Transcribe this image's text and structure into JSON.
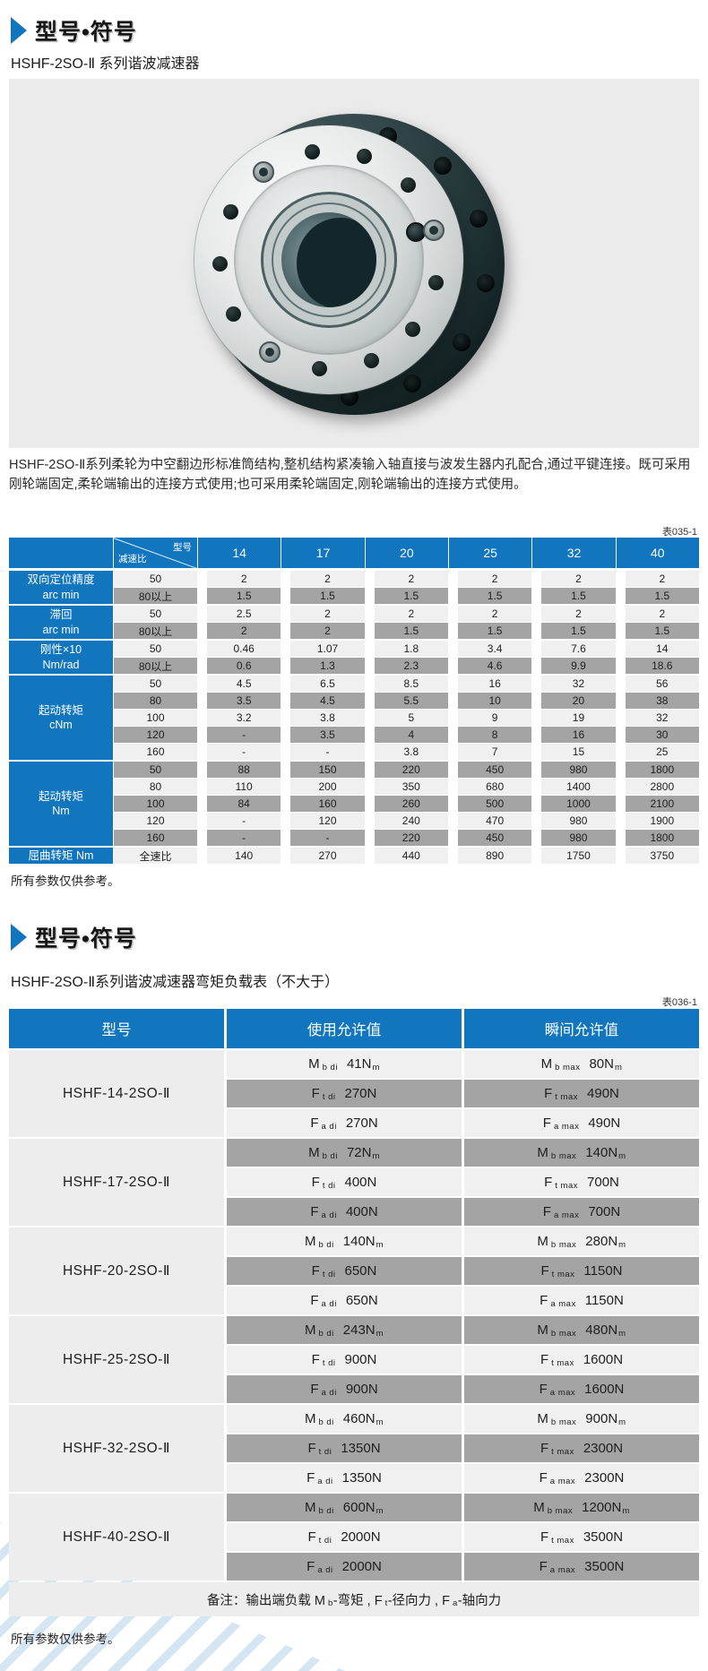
{
  "colors": {
    "accent_blue": "#1276bf",
    "row_light": "#f0f0f0",
    "row_dark": "#a4a4a4",
    "model_cell": "#ededed",
    "image_bg": "#ebebeb",
    "watermark_blue": "#8dbcde"
  },
  "page": {
    "section1": {
      "title": "型号•符号",
      "subtitle": "HSHF-2SO-Ⅱ 系列谐波减速器",
      "description": "HSHF-2SO-Ⅱ系列柔轮为中空翻边形标准筒结构,整机结构紧凑输入轴直接与波发生器内孔配合,通过平键连接。既可采用刚轮端固定,柔轮端输出的连接方式使用;也可采用柔轮端固定,刚轮端输出的连接方式使用。",
      "table_label": "表035-1",
      "note": "所有参数仅供参考。"
    },
    "section2": {
      "title": "型号•符号",
      "subtitle": "HSHF-2SO-Ⅱ系列谐波减速器弯矩负载表（不大于）",
      "table_label": "表036-1",
      "note": "所有参数仅供参考。"
    }
  },
  "spec_table": {
    "corner": {
      "top_right": "型号",
      "bottom_left": "减速比"
    },
    "model_columns": [
      "14",
      "17",
      "20",
      "25",
      "32",
      "40"
    ],
    "groups": [
      {
        "label_lines": [
          "双向定位精度",
          "arc min"
        ],
        "rows": [
          {
            "ratio": "50",
            "values": [
              "2",
              "2",
              "2",
              "2",
              "2",
              "2"
            ]
          },
          {
            "ratio": "80以上",
            "values": [
              "1.5",
              "1.5",
              "1.5",
              "1.5",
              "1.5",
              "1.5"
            ]
          }
        ]
      },
      {
        "label_lines": [
          "滞回",
          "arc min"
        ],
        "rows": [
          {
            "ratio": "50",
            "values": [
              "2.5",
              "2",
              "2",
              "2",
              "2",
              "2"
            ]
          },
          {
            "ratio": "80以上",
            "values": [
              "2",
              "2",
              "1.5",
              "1.5",
              "1.5",
              "1.5"
            ]
          }
        ]
      },
      {
        "label_lines": [
          "刚性×10",
          "Nm/rad"
        ],
        "rows": [
          {
            "ratio": "50",
            "values": [
              "0.46",
              "1.07",
              "1.8",
              "3.4",
              "7.6",
              "14"
            ]
          },
          {
            "ratio": "80以上",
            "values": [
              "0.6",
              "1.3",
              "2.3",
              "4.6",
              "9.9",
              "18.6"
            ]
          }
        ]
      },
      {
        "label_lines": [
          "起动转矩",
          "cNm"
        ],
        "rows": [
          {
            "ratio": "50",
            "values": [
              "4.5",
              "6.5",
              "8.5",
              "16",
              "32",
              "56"
            ]
          },
          {
            "ratio": "80",
            "values": [
              "3.5",
              "4.5",
              "5.5",
              "10",
              "20",
              "38"
            ]
          },
          {
            "ratio": "100",
            "values": [
              "3.2",
              "3.8",
              "5",
              "9",
              "19",
              "32"
            ]
          },
          {
            "ratio": "120",
            "values": [
              "-",
              "3.5",
              "4",
              "8",
              "16",
              "30"
            ]
          },
          {
            "ratio": "160",
            "values": [
              "-",
              "-",
              "3.8",
              "7",
              "15",
              "25"
            ]
          }
        ]
      },
      {
        "label_lines": [
          "起动转矩",
          "Nm"
        ],
        "rows": [
          {
            "ratio": "50",
            "values": [
              "88",
              "150",
              "220",
              "450",
              "980",
              "1800"
            ]
          },
          {
            "ratio": "80",
            "values": [
              "110",
              "200",
              "350",
              "680",
              "1400",
              "2800"
            ]
          },
          {
            "ratio": "100",
            "values": [
              "84",
              "160",
              "260",
              "500",
              "1000",
              "2100"
            ]
          },
          {
            "ratio": "120",
            "values": [
              "-",
              "120",
              "240",
              "470",
              "980",
              "1900"
            ]
          },
          {
            "ratio": "160",
            "values": [
              "-",
              "-",
              "220",
              "450",
              "980",
              "1800"
            ]
          }
        ]
      },
      {
        "label_lines": [
          "屈曲转矩 Nm"
        ],
        "rows": [
          {
            "ratio": "全速比",
            "values": [
              "140",
              "270",
              "440",
              "890",
              "1750",
              "3750"
            ]
          }
        ]
      }
    ]
  },
  "moment_table": {
    "headers": [
      "型号",
      "使用允许值",
      "瞬间允许值"
    ],
    "groups": [
      {
        "model": "HSHF-14-2SO-Ⅱ",
        "rows": [
          {
            "use": {
              "sym": "M",
              "sub": "b di",
              "val": "41N",
              "vsub": "m"
            },
            "max": {
              "sym": "M",
              "sub": "b max",
              "val": "80N",
              "vsub": "m"
            }
          },
          {
            "use": {
              "sym": "F",
              "sub": "t di",
              "val": "270N",
              "vsub": ""
            },
            "max": {
              "sym": "F",
              "sub": "t max",
              "val": "490N",
              "vsub": ""
            }
          },
          {
            "use": {
              "sym": "F",
              "sub": "a di",
              "val": "270N",
              "vsub": ""
            },
            "max": {
              "sym": "F",
              "sub": "a max",
              "val": "490N",
              "vsub": ""
            }
          }
        ]
      },
      {
        "model": "HSHF-17-2SO-Ⅱ",
        "rows": [
          {
            "use": {
              "sym": "M",
              "sub": "b di",
              "val": "72N",
              "vsub": "m"
            },
            "max": {
              "sym": "M",
              "sub": "b max",
              "val": "140N",
              "vsub": "m"
            }
          },
          {
            "use": {
              "sym": "F",
              "sub": "t di",
              "val": "400N",
              "vsub": ""
            },
            "max": {
              "sym": "F",
              "sub": "t max",
              "val": "700N",
              "vsub": ""
            }
          },
          {
            "use": {
              "sym": "F",
              "sub": "a di",
              "val": "400N",
              "vsub": ""
            },
            "max": {
              "sym": "F",
              "sub": "a max",
              "val": "700N",
              "vsub": ""
            }
          }
        ]
      },
      {
        "model": "HSHF-20-2SO-Ⅱ",
        "rows": [
          {
            "use": {
              "sym": "M",
              "sub": "b di",
              "val": "140N",
              "vsub": "m"
            },
            "max": {
              "sym": "M",
              "sub": "b max",
              "val": "280N",
              "vsub": "m"
            }
          },
          {
            "use": {
              "sym": "F",
              "sub": "t di",
              "val": "650N",
              "vsub": ""
            },
            "max": {
              "sym": "F",
              "sub": "t max",
              "val": "1150N",
              "vsub": ""
            }
          },
          {
            "use": {
              "sym": "F",
              "sub": "a di",
              "val": "650N",
              "vsub": ""
            },
            "max": {
              "sym": "F",
              "sub": "a max",
              "val": "1150N",
              "vsub": ""
            }
          }
        ]
      },
      {
        "model": "HSHF-25-2SO-Ⅱ",
        "rows": [
          {
            "use": {
              "sym": "M",
              "sub": "b di",
              "val": "243N",
              "vsub": "m"
            },
            "max": {
              "sym": "M",
              "sub": "b max",
              "val": "480N",
              "vsub": "m"
            }
          },
          {
            "use": {
              "sym": "F",
              "sub": "t di",
              "val": "900N",
              "vsub": ""
            },
            "max": {
              "sym": "F",
              "sub": "t max",
              "val": "1600N",
              "vsub": ""
            }
          },
          {
            "use": {
              "sym": "F",
              "sub": "a di",
              "val": "900N",
              "vsub": ""
            },
            "max": {
              "sym": "F",
              "sub": "a max",
              "val": "1600N",
              "vsub": ""
            }
          }
        ]
      },
      {
        "model": "HSHF-32-2SO-Ⅱ",
        "rows": [
          {
            "use": {
              "sym": "M",
              "sub": "b di",
              "val": "460N",
              "vsub": "m"
            },
            "max": {
              "sym": "M",
              "sub": "b max",
              "val": "900N",
              "vsub": "m"
            }
          },
          {
            "use": {
              "sym": "F",
              "sub": "t di",
              "val": "1350N",
              "vsub": ""
            },
            "max": {
              "sym": "F",
              "sub": "t max",
              "val": "2300N",
              "vsub": ""
            }
          },
          {
            "use": {
              "sym": "F",
              "sub": "a di",
              "val": "1350N",
              "vsub": ""
            },
            "max": {
              "sym": "F",
              "sub": "a max",
              "val": "2300N",
              "vsub": ""
            }
          }
        ]
      },
      {
        "model": "HSHF-40-2SO-Ⅱ",
        "rows": [
          {
            "use": {
              "sym": "M",
              "sub": "b di",
              "val": "600N",
              "vsub": "m"
            },
            "max": {
              "sym": "M",
              "sub": "b max",
              "val": "1200N",
              "vsub": "m"
            }
          },
          {
            "use": {
              "sym": "F",
              "sub": "t di",
              "val": "2000N",
              "vsub": ""
            },
            "max": {
              "sym": "F",
              "sub": "t max",
              "val": "3500N",
              "vsub": ""
            }
          },
          {
            "use": {
              "sym": "F",
              "sub": "a di",
              "val": "2000N",
              "vsub": ""
            },
            "max": {
              "sym": "F",
              "sub": "a max",
              "val": "3500N",
              "vsub": ""
            }
          }
        ]
      }
    ],
    "footnote_parts": [
      {
        "t": "备注：输出端负载 M"
      },
      {
        "sub": "b"
      },
      {
        "t": " -弯矩 , F"
      },
      {
        "sub": "t"
      },
      {
        "t": " -径向力 , F"
      },
      {
        "sub": "a"
      },
      {
        "t": " -轴向力"
      }
    ]
  }
}
